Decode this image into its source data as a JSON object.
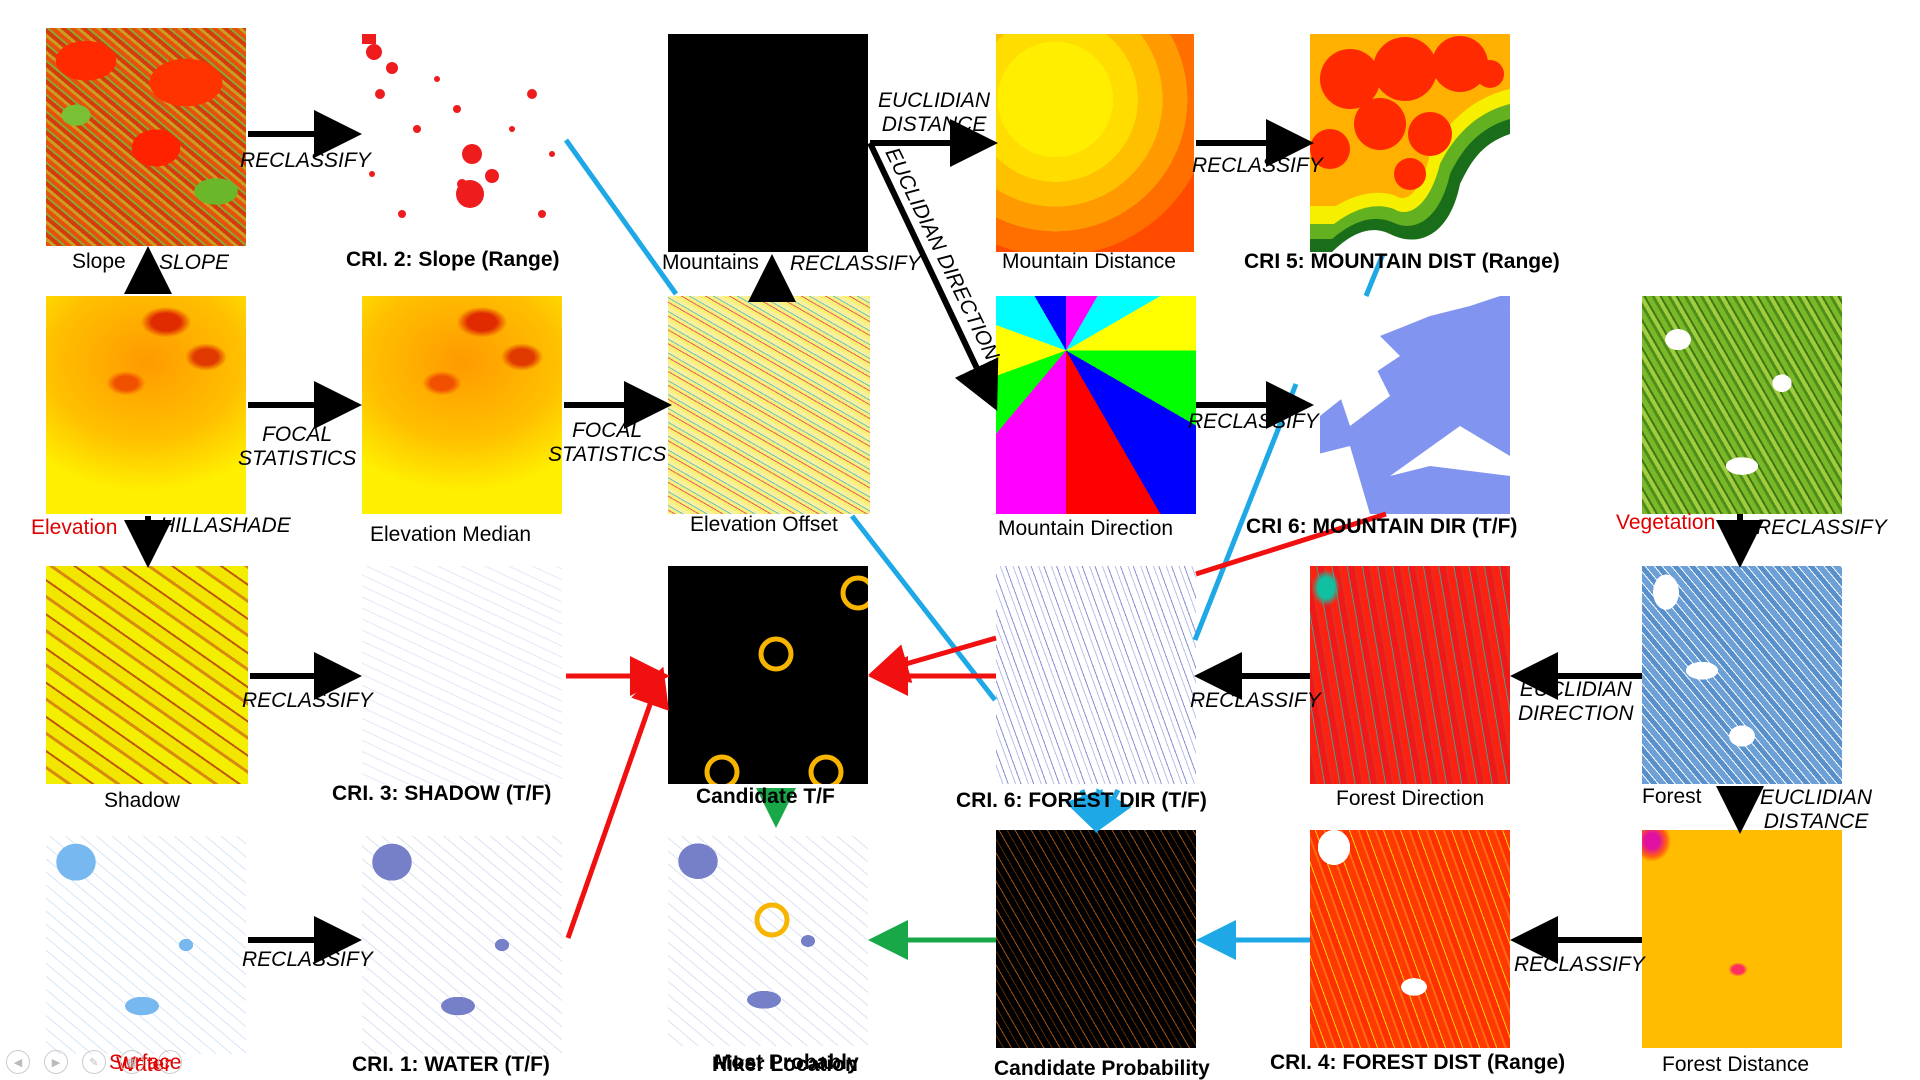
{
  "tiles": {
    "slope": "Slope",
    "cri2": "CRI. 2: Slope (Range)",
    "mountains": "Mountains",
    "mountain_distance": "Mountain Distance",
    "cri5": "CRI 5: MOUNTAIN DIST (Range)",
    "elevation": "Elevation",
    "elevation_median": "Elevation Median",
    "elevation_offset": "Elevation Offset",
    "mountain_direction": "Mountain Direction",
    "cri6_mountain": "CRI 6: MOUNTAIN DIR (T/F)",
    "vegetation": "Vegetation",
    "shadow": "Shadow",
    "cri3": "CRI. 3: SHADOW (T/F)",
    "candidate": "Candidate T/F",
    "cri6_forest": "CRI. 6: FOREST DIR (T/F)",
    "forest_direction": "Forest Direction",
    "forest": "Forest",
    "surface_water_line1": "Surface",
    "surface_water_line2": "Water",
    "cri1": "CRI. 1: WATER (T/F)",
    "hiker_line1": "Most Probably",
    "hiker_line2": "Hiker Location",
    "candidate_probability": "Candidate Probability",
    "cri4": "CRI. 4: FOREST DIST (Range)",
    "forest_distance": "Forest Distance"
  },
  "operations": {
    "slope": "SLOPE",
    "reclassify_slope": "RECLASSIFY",
    "euclidian_distance_1a": "EUCLIDIAN",
    "euclidian_distance_1b": "DISTANCE",
    "reclassify_mountain_dist": "RECLASSIFY",
    "reclassify_mountains": "RECLASSIFY",
    "euclidian_direction_diag": "EUCLIDIAN DIRECTION",
    "focal_1a": "FOCAL",
    "focal_1b": "STATISTICS",
    "focal_2a": "FOCAL",
    "focal_2b": "STATISTICS",
    "reclassify_mountain_dir": "RECLASSIFY",
    "hillashade": "HILLASHADE",
    "reclassify_vegetation": "RECLASSIFY",
    "reclassify_shadow": "RECLASSIFY",
    "reclassify_forest_dir": "RECLASSIFY",
    "euclidian_direction_2a": "EUCLIDIAN",
    "euclidian_direction_2b": "DIRECTION",
    "euclidian_distance_2a": "EUCLIDIAN",
    "euclidian_distance_2b": "DISTANCE",
    "reclassify_water": "RECLASSIFY",
    "reclassify_forest_dist": "RECLASSIFY"
  },
  "colors": {
    "arrow_black": "#000000",
    "arrow_red": "#f01010",
    "arrow_blue": "#1ea8e6",
    "arrow_green": "#18a848",
    "highlight_circle": "#f7b500",
    "label_red": "#e00000"
  },
  "nav_icons": [
    "prev-slide-icon",
    "next-slide-icon",
    "pen-icon",
    "slides-icon",
    "more-icon"
  ]
}
